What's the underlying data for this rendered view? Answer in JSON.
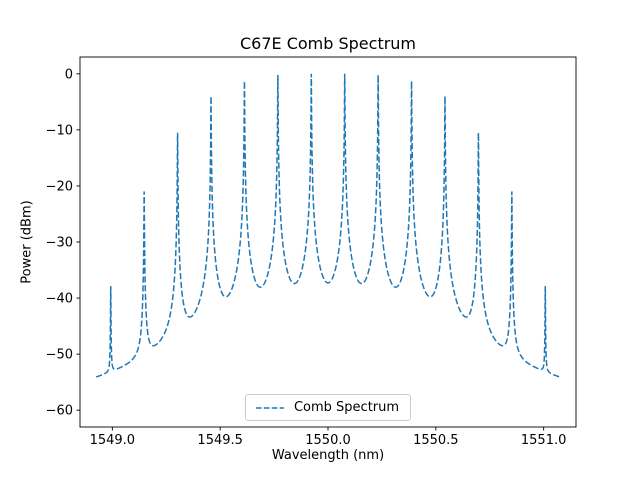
{
  "chart_data": {
    "type": "line",
    "title": "C67E Comb Spectrum",
    "xlabel": "Wavelength (nm)",
    "ylabel": "Power (dBm)",
    "xlim": [
      1548.85,
      1551.15
    ],
    "ylim": [
      -63,
      3
    ],
    "x_ticks": [
      1549.0,
      1549.5,
      1550.0,
      1550.5,
      1551.0
    ],
    "y_ticks": [
      0,
      -10,
      -20,
      -30,
      -40,
      -50,
      -60
    ],
    "grid": false,
    "legend": {
      "label": "Comb Spectrum",
      "position": "lower center",
      "line_style": "dashed"
    },
    "series": [
      {
        "name": "Comb Spectrum",
        "style": "dashed",
        "color": "#1f77b4",
        "model": "lorentzian_comb_sum_clipped",
        "x_range_nm": [
          1548.925,
          1551.075
        ],
        "noise_floor_dbm": -60,
        "tooth_spacing_nm": 0.155,
        "lorentzian_hwhm_nm": 0.0007,
        "teeth": [
          {
            "wavelength_nm": 1548.9925,
            "peak_dbm": -38
          },
          {
            "wavelength_nm": 1549.1475,
            "peak_dbm": -21
          },
          {
            "wavelength_nm": 1549.3025,
            "peak_dbm": -10.5
          },
          {
            "wavelength_nm": 1549.4575,
            "peak_dbm": -4
          },
          {
            "wavelength_nm": 1549.6125,
            "peak_dbm": -1.3
          },
          {
            "wavelength_nm": 1549.7675,
            "peak_dbm": -0.2
          },
          {
            "wavelength_nm": 1549.9225,
            "peak_dbm": 0
          },
          {
            "wavelength_nm": 1550.0775,
            "peak_dbm": 0
          },
          {
            "wavelength_nm": 1550.2325,
            "peak_dbm": -0.2
          },
          {
            "wavelength_nm": 1550.3875,
            "peak_dbm": -1.3
          },
          {
            "wavelength_nm": 1550.5425,
            "peak_dbm": -4
          },
          {
            "wavelength_nm": 1550.6975,
            "peak_dbm": -10.5
          },
          {
            "wavelength_nm": 1550.8525,
            "peak_dbm": -21
          },
          {
            "wavelength_nm": 1551.0075,
            "peak_dbm": -38
          }
        ]
      }
    ]
  }
}
